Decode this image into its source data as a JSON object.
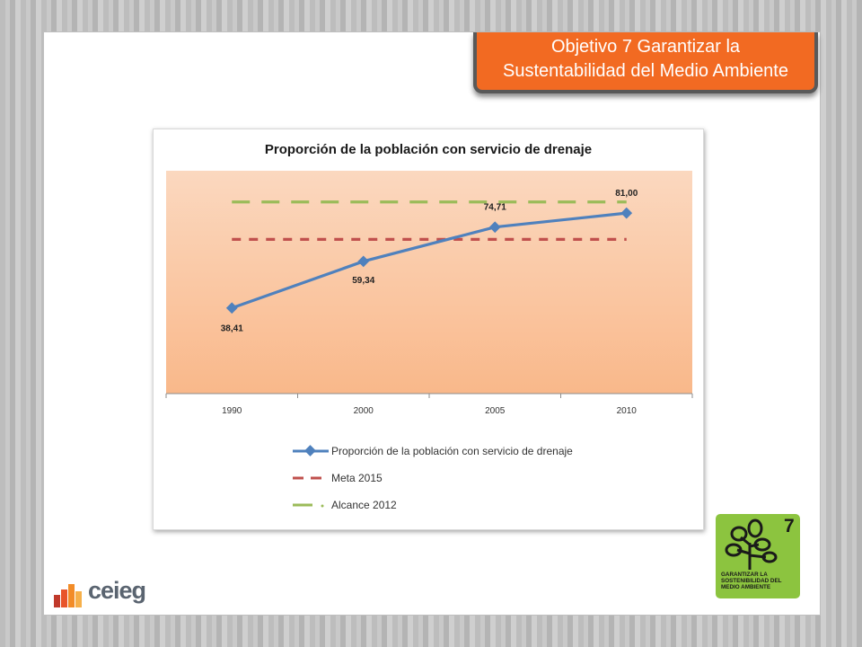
{
  "slide": {
    "title_line1": "Objetivo 7 Garantizar la",
    "title_line2": "Sustentabilidad del Medio Ambiente"
  },
  "chart_data": {
    "type": "line",
    "title": "Proporción de la población con servicio de drenaje",
    "categories": [
      "1990",
      "2000",
      "2005",
      "2010"
    ],
    "series": [
      {
        "name": "Proporción de la población con servicio de drenaje",
        "values": [
          38.41,
          59.34,
          74.71,
          81.0
        ],
        "labels": [
          "38,41",
          "59,34",
          "74,71",
          "81,00"
        ],
        "color": "#4f81bd",
        "style": "solid-diamond"
      },
      {
        "name": "Meta 2015",
        "values": [
          69.2,
          69.2,
          69.2,
          69.2
        ],
        "color": "#c0504d",
        "style": "dashed"
      },
      {
        "name": "Alcance 2012",
        "values": [
          86.0,
          86.0,
          86.0,
          86.0
        ],
        "color": "#9bbb59",
        "style": "long-dashed"
      }
    ],
    "ylim": [
      0,
      100
    ],
    "grid": false,
    "legend": "bottom"
  },
  "logo": {
    "text": "ceieg",
    "icon": "ceieg-bars-icon"
  },
  "badge": {
    "number": "7",
    "caption": "GARANTIZAR LA SOSTENIBILIDAD DEL MEDIO AMBIENTE",
    "icon": "tree-icon",
    "color": "#8cc43f"
  }
}
